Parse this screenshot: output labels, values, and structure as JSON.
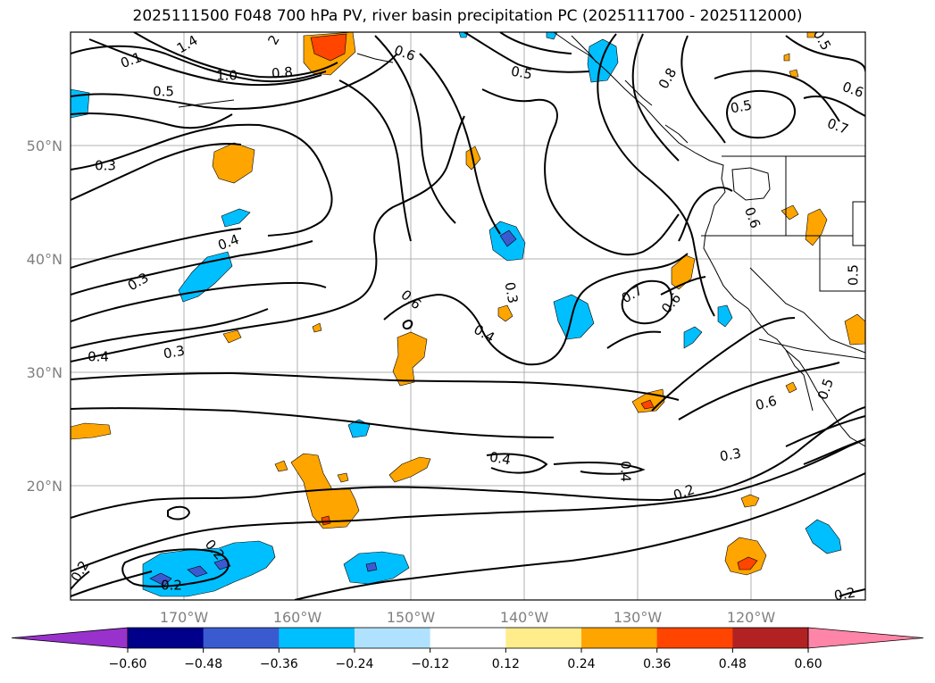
{
  "title": "2025111500 F048 700 hPa PV, river basin precipitation PC (2025111700 - 2025112000)",
  "map": {
    "lat_labels": [
      "50°N",
      "40°N",
      "30°N",
      "20°N"
    ],
    "lon_labels": [
      "170°W",
      "160°W",
      "150°W",
      "140°W",
      "130°W",
      "120°W"
    ],
    "contour_labels": [
      "0.1",
      "1.4",
      "2",
      "0.6",
      "0.8",
      "1.0",
      "0.5",
      "0.5",
      "0.5",
      "0.6",
      "0.8",
      "0.5",
      "0.7",
      "0.3",
      "0.6",
      "0.4",
      "0.3",
      "0.6",
      "0.3",
      "0.7",
      "0.6",
      "0.5",
      "0.4",
      "0.4",
      "0.3",
      "0.6",
      "0.5",
      "0.4",
      "0.4",
      "0.3",
      "0.2",
      "0.2",
      "0.2",
      "0.2",
      "0.2"
    ]
  },
  "colorbar": {
    "ticks": [
      "−0.60",
      "−0.48",
      "−0.36",
      "−0.24",
      "−0.12",
      "0.12",
      "0.24",
      "0.36",
      "0.48",
      "0.60"
    ],
    "colors": [
      "#9932cc",
      "#00008b",
      "#3a5bd0",
      "#00bfff",
      "#b0e2ff",
      "#ffffff",
      "#ffec8b",
      "#ffa500",
      "#ff4500",
      "#b22222",
      "#ff85a8"
    ]
  }
}
